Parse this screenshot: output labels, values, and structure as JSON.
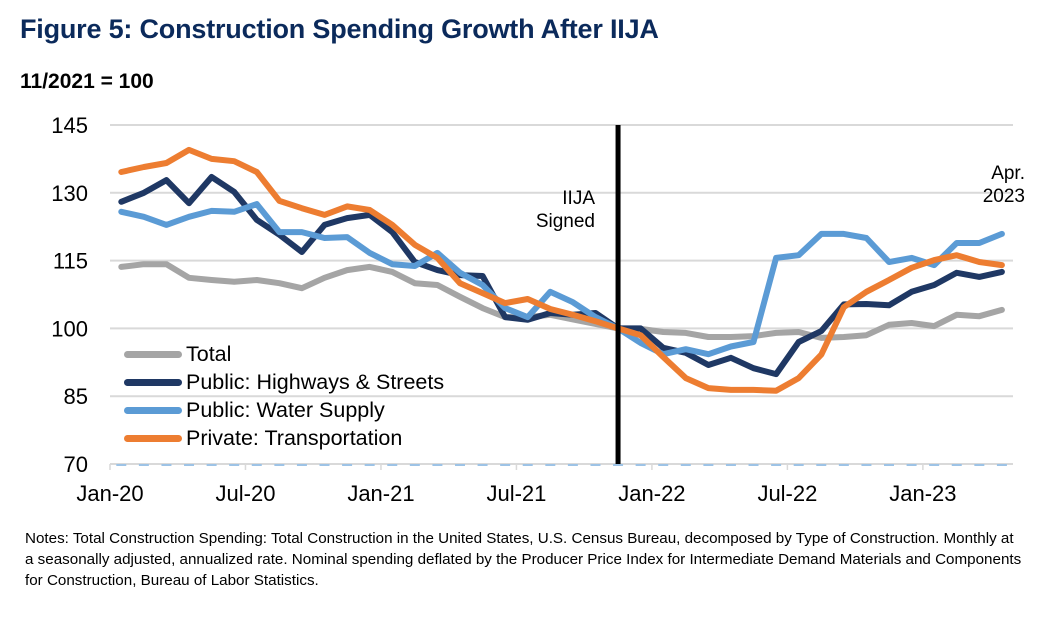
{
  "header": {
    "title": "Figure 5: Construction Spending Growth After IIJA",
    "subtitle": "11/2021 = 100"
  },
  "notes": "Notes: Total Construction Spending: Total Construction in the United States, U.S. Census Bureau, decomposed by Type of Construction. Monthly at a seasonally adjusted, annualized rate. Nominal spending deflated by the Producer Price Index for Intermediate Demand Materials and Components for Construction, Bureau of Labor Statistics.",
  "chart_data": {
    "type": "line",
    "title": "Figure 5: Construction Spending Growth After IIJA",
    "subtitle": "11/2021 = 100",
    "xlabel": "",
    "ylabel": "",
    "ylim": [
      70,
      145
    ],
    "yticks": [
      70,
      85,
      100,
      115,
      130,
      145
    ],
    "grid": true,
    "legend_position": "bottom-left",
    "x": [
      "Jan-20",
      "Feb-20",
      "Mar-20",
      "Apr-20",
      "May-20",
      "Jun-20",
      "Jul-20",
      "Aug-20",
      "Sep-20",
      "Oct-20",
      "Nov-20",
      "Dec-20",
      "Jan-21",
      "Feb-21",
      "Mar-21",
      "Apr-21",
      "May-21",
      "Jun-21",
      "Jul-21",
      "Aug-21",
      "Sep-21",
      "Oct-21",
      "Nov-21",
      "Dec-21",
      "Jan-22",
      "Feb-22",
      "Mar-22",
      "Apr-22",
      "May-22",
      "Jun-22",
      "Jul-22",
      "Aug-22",
      "Sep-22",
      "Oct-22",
      "Nov-22",
      "Dec-22",
      "Jan-23",
      "Feb-23",
      "Mar-23",
      "Apr-23"
    ],
    "xtick_labels": [
      "Jan-20",
      "Jul-20",
      "Jan-21",
      "Jul-21",
      "Jan-22",
      "Jul-22",
      "Jan-23"
    ],
    "series": [
      {
        "name": "Total",
        "color": "#a5a5a5",
        "values": [
          113.6,
          114.2,
          114.2,
          111.2,
          110.7,
          110.3,
          110.7,
          110.0,
          108.9,
          111.2,
          112.9,
          113.6,
          112.5,
          110.0,
          109.6,
          107.0,
          104.5,
          102.5,
          102.5,
          103.0,
          102.0,
          101.0,
          100.0,
          99.9,
          99.2,
          99.0,
          98.1,
          98.1,
          98.3,
          99.0,
          99.2,
          97.9,
          98.1,
          98.5,
          100.8,
          101.2,
          100.5,
          103.0,
          102.7,
          104.1
        ]
      },
      {
        "name": "Public: Highways & Streets",
        "color": "#1f3864",
        "values": [
          128.0,
          130.0,
          132.8,
          127.7,
          133.5,
          130.2,
          124.0,
          120.7,
          116.9,
          122.9,
          124.4,
          125.1,
          121.3,
          114.7,
          112.9,
          111.8,
          111.6,
          102.5,
          101.9,
          103.4,
          103.0,
          103.4,
          100.0,
          100.0,
          95.7,
          94.6,
          91.9,
          93.5,
          91.2,
          89.9,
          97.0,
          99.4,
          105.3,
          105.4,
          105.1,
          108.1,
          109.6,
          112.3,
          111.4,
          112.5
        ]
      },
      {
        "name": "Public: Water Supply",
        "color": "#5b9bd5",
        "values": [
          125.8,
          124.7,
          122.9,
          124.7,
          126.0,
          125.8,
          127.5,
          121.3,
          121.3,
          120.0,
          120.2,
          116.7,
          114.2,
          113.8,
          116.7,
          112.3,
          109.6,
          104.5,
          102.5,
          108.1,
          105.8,
          102.5,
          100.0,
          96.8,
          94.3,
          95.4,
          94.3,
          96.0,
          97.0,
          115.6,
          116.2,
          120.9,
          120.9,
          120.0,
          114.7,
          115.6,
          114.0,
          118.9,
          118.9,
          120.9
        ]
      },
      {
        "name": "Private: Transportation",
        "color": "#ed7d31",
        "values": [
          134.6,
          135.7,
          136.6,
          139.5,
          137.5,
          137.0,
          134.6,
          128.2,
          126.6,
          125.1,
          127.0,
          126.2,
          122.9,
          118.5,
          115.6,
          110.0,
          107.8,
          105.6,
          106.5,
          104.3,
          103.0,
          101.6,
          100.0,
          98.5,
          93.7,
          89.0,
          86.8,
          86.4,
          86.4,
          86.2,
          89.0,
          94.2,
          104.7,
          108.1,
          110.7,
          113.4,
          115.1,
          116.2,
          114.7,
          114.0
        ]
      }
    ],
    "annotations": [
      {
        "text": "IIJA Signed",
        "line_1": "IIJA",
        "line_2": "Signed",
        "x": "Nov-21",
        "type": "vertical-line"
      },
      {
        "text": "Apr. 2023",
        "line_1": "Apr.",
        "line_2": "2023",
        "x": "Apr-23"
      }
    ]
  }
}
